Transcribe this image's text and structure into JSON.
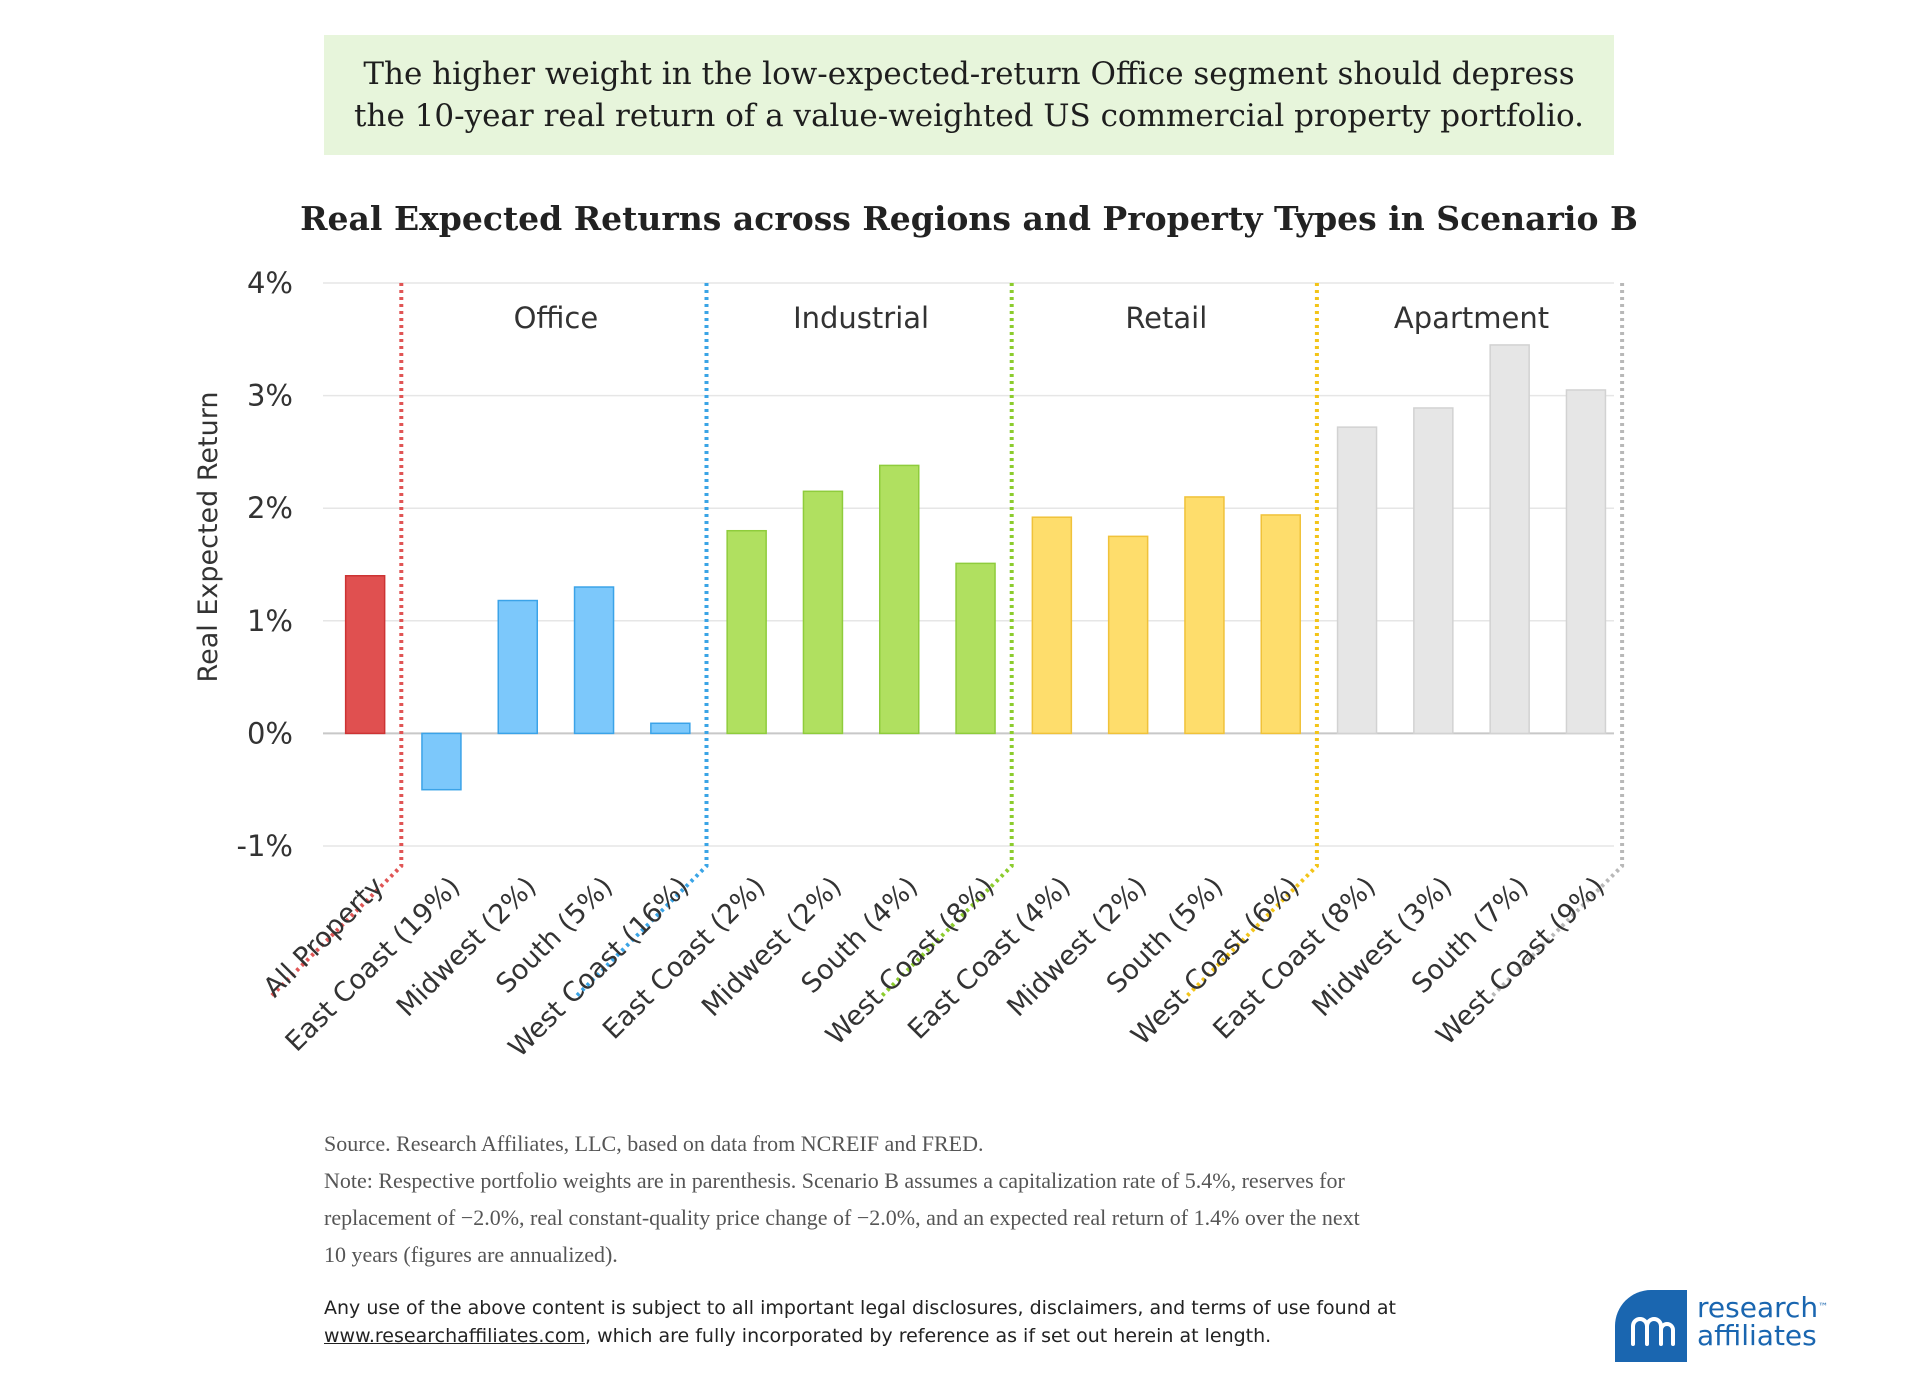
{
  "banner": {
    "line1": "The higher weight in the low-expected-return Office segment should depress",
    "line2": "the 10-year real return of a value-weighted US commercial property portfolio."
  },
  "chart_data": {
    "type": "bar",
    "title": "Real Expected Returns across Regions and Property Types in Scenario B",
    "xlabel": "",
    "ylabel": "Real Expected Return",
    "ylim": [
      -1,
      4
    ],
    "yticks": [
      -1,
      0,
      1,
      2,
      3,
      4
    ],
    "ytick_labels": [
      "-1%",
      "0%",
      "1%",
      "2%",
      "3%",
      "4%"
    ],
    "grid": true,
    "categories": [
      "All Property",
      "East Coast (19%)",
      "Midwest (2%)",
      "South (5%)",
      "West Coast (16%)",
      "East Coast (2%)",
      "Midwest (2%)",
      "South (4%)",
      "West Coast (8%)",
      "East Coast (4%)",
      "Midwest (2%)",
      "South (5%)",
      "West Coast (6%)",
      "East Coast (8%)",
      "Midwest (3%)",
      "South (7%)",
      "West Coast (9%)"
    ],
    "values": [
      1.4,
      -0.5,
      1.18,
      1.3,
      0.09,
      1.8,
      2.15,
      2.38,
      1.51,
      1.92,
      1.75,
      2.1,
      1.94,
      2.72,
      2.89,
      3.45,
      3.05
    ],
    "groups": [
      {
        "name": "All Property",
        "start": 0,
        "end": 0,
        "color": "#e05050",
        "edge": "#cc3333",
        "divider": "#e05555"
      },
      {
        "name": "Office",
        "start": 1,
        "end": 4,
        "color": "#7cc8fb",
        "edge": "#3ba3e8",
        "divider": "#3aa4e6"
      },
      {
        "name": "Industrial",
        "start": 5,
        "end": 8,
        "color": "#b0e060",
        "edge": "#8fcc3c",
        "divider": "#8ccc2e"
      },
      {
        "name": "Retail",
        "start": 9,
        "end": 12,
        "color": "#fedd6c",
        "edge": "#f0c23a",
        "divider": "#f3c418"
      },
      {
        "name": "Apartment",
        "start": 13,
        "end": 16,
        "color": "#e6e6e6",
        "edge": "#d2d2d2",
        "divider": "#b8b8b8"
      }
    ]
  },
  "footer": {
    "source": "Source. Research Affiliates, LLC, based on data from NCREIF and FRED.",
    "note_line1": "Note: Respective portfolio weights are in parenthesis. Scenario B assumes a capitalization rate of 5.4%, reserves for",
    "note_line2": "replacement of −2.0%, real constant-quality price change of −2.0%, and an expected real return of 1.4% over the next",
    "note_line3": "10 years (figures are annualized).",
    "legal_line1": "Any use of the above content is subject to all important legal disclosures, disclaimers, and terms of use found at",
    "legal_link": "www.researchaffiliates.com",
    "legal_line2_rest": ", which are fully incorporated by reference as if set out herein at length."
  },
  "logo": {
    "line1": "research",
    "tm": "™",
    "line2": "affiliates",
    "color": "#1a66b0"
  }
}
